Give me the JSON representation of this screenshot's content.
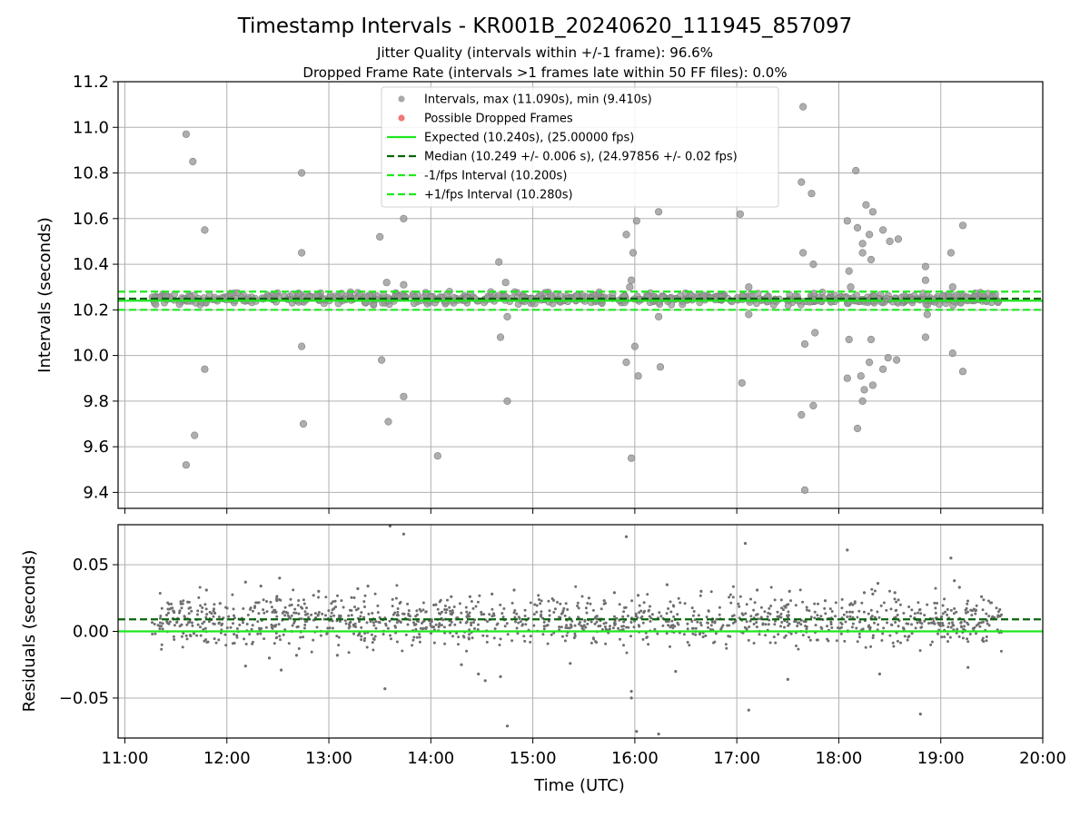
{
  "chart_data": [
    {
      "type": "scatter",
      "title": "Timestamp Intervals - KR001B_20240620_111945_857097",
      "subtitle_1": "Jitter Quality (intervals within +/-1 frame): 96.6%",
      "subtitle_2": "Dropped Frame Rate (intervals >1 frames late within 50 FF files): 0.0%",
      "xlabel": "",
      "ylabel": "Intervals (seconds)",
      "xlim": [
        "10:56",
        "20:00"
      ],
      "ylim": [
        9.33,
        11.2
      ],
      "yticks": [
        "9.4",
        "9.6",
        "9.8",
        "10.0",
        "10.2",
        "10.4",
        "10.6",
        "10.8",
        "11.0",
        "11.2"
      ],
      "grid": true,
      "legend_position": "top-center",
      "legend": [
        "Intervals, max (11.090s), min (9.410s)",
        "Possible Dropped Frames",
        "Expected (10.240s), (25.00000 fps)",
        "Median (10.249 +/- 0.006 s), (24.97856 +/- 0.02 fps)",
        "-1/fps Interval (10.200s)",
        "+1/fps Interval (10.280s)"
      ],
      "lines": {
        "expected": 10.24,
        "median": 10.249,
        "minus_1_fps": 10.2,
        "plus_1_fps": 10.28
      },
      "series": [
        {
          "name": "Intervals, max (11.090s), min (9.410s)",
          "points": [
            [
              "11:36",
              10.97
            ],
            [
              "11:40",
              10.85
            ],
            [
              "11:47",
              10.55
            ],
            [
              "11:47",
              9.94
            ],
            [
              "11:36",
              9.52
            ],
            [
              "11:41",
              9.65
            ],
            [
              "12:44",
              10.8
            ],
            [
              "12:44",
              10.45
            ],
            [
              "12:44",
              10.04
            ],
            [
              "12:45",
              9.7
            ],
            [
              "13:30",
              10.52
            ],
            [
              "13:31",
              9.98
            ],
            [
              "13:34",
              10.32
            ],
            [
              "13:35",
              9.71
            ],
            [
              "13:44",
              10.6
            ],
            [
              "13:44",
              10.31
            ],
            [
              "13:44",
              9.82
            ],
            [
              "14:04",
              9.56
            ],
            [
              "14:40",
              10.41
            ],
            [
              "14:41",
              10.08
            ],
            [
              "14:44",
              10.32
            ],
            [
              "14:45",
              10.17
            ],
            [
              "14:45",
              9.8
            ],
            [
              "15:55",
              10.53
            ],
            [
              "15:57",
              10.3
            ],
            [
              "15:58",
              10.33
            ],
            [
              "15:59",
              10.45
            ],
            [
              "16:00",
              10.04
            ],
            [
              "16:01",
              10.59
            ],
            [
              "16:02",
              9.91
            ],
            [
              "15:55",
              9.97
            ],
            [
              "15:58",
              9.55
            ],
            [
              "16:14",
              10.63
            ],
            [
              "16:14",
              10.17
            ],
            [
              "16:15",
              9.95
            ],
            [
              "17:02",
              10.62
            ],
            [
              "17:03",
              9.88
            ],
            [
              "17:07",
              10.3
            ],
            [
              "17:07",
              10.18
            ],
            [
              "17:39",
              11.09
            ],
            [
              "17:38",
              10.76
            ],
            [
              "17:39",
              10.45
            ],
            [
              "17:40",
              10.05
            ],
            [
              "17:38",
              9.74
            ],
            [
              "17:44",
              10.71
            ],
            [
              "17:45",
              10.4
            ],
            [
              "17:46",
              10.1
            ],
            [
              "17:45",
              9.78
            ],
            [
              "17:40",
              9.41
            ],
            [
              "18:05",
              10.59
            ],
            [
              "18:06",
              10.37
            ],
            [
              "18:07",
              10.3
            ],
            [
              "18:06",
              10.07
            ],
            [
              "18:05",
              9.9
            ],
            [
              "18:10",
              10.81
            ],
            [
              "18:11",
              10.56
            ],
            [
              "18:14",
              10.49
            ],
            [
              "18:14",
              10.45
            ],
            [
              "18:16",
              10.66
            ],
            [
              "18:18",
              10.53
            ],
            [
              "18:20",
              10.63
            ],
            [
              "18:19",
              10.42
            ],
            [
              "18:19",
              10.07
            ],
            [
              "18:18",
              9.97
            ],
            [
              "18:20",
              9.87
            ],
            [
              "18:13",
              9.91
            ],
            [
              "18:14",
              9.8
            ],
            [
              "18:15",
              9.85
            ],
            [
              "18:11",
              9.68
            ],
            [
              "18:26",
              10.55
            ],
            [
              "18:30",
              10.5
            ],
            [
              "18:28",
              10.25
            ],
            [
              "18:29",
              9.99
            ],
            [
              "18:26",
              9.94
            ],
            [
              "18:35",
              10.51
            ],
            [
              "18:34",
              9.98
            ],
            [
              "18:51",
              10.39
            ],
            [
              "18:51",
              10.33
            ],
            [
              "18:52",
              10.18
            ],
            [
              "18:51",
              10.08
            ],
            [
              "19:06",
              10.45
            ],
            [
              "19:07",
              10.3
            ],
            [
              "19:07",
              10.01
            ],
            [
              "19:13",
              10.57
            ],
            [
              "19:13",
              9.93
            ]
          ]
        },
        {
          "name": "Possible Dropped Frames",
          "points": []
        }
      ]
    },
    {
      "type": "scatter",
      "title": "",
      "xlabel": "Time (UTC)",
      "ylabel": "Residuals (seconds)",
      "xlim": [
        "10:56",
        "20:00"
      ],
      "ylim": [
        -0.08,
        0.08
      ],
      "xticks": [
        "11:00",
        "12:00",
        "13:00",
        "14:00",
        "15:00",
        "16:00",
        "17:00",
        "18:00",
        "19:00",
        "20:00"
      ],
      "yticks": [
        "−0.05",
        "0.00",
        "0.05"
      ],
      "grid": true,
      "lines": {
        "zero": 0.0,
        "median_offset": 0.009
      },
      "series": [
        {
          "name": "",
          "points": [
            [
              "11:37",
              0.022
            ],
            [
              "11:48",
              0.031
            ],
            [
              "11:56",
              0.021
            ],
            [
              "12:11",
              -0.026
            ],
            [
              "12:11",
              0.037
            ],
            [
              "12:20",
              0.034
            ],
            [
              "12:25",
              -0.02
            ],
            [
              "12:31",
              0.04
            ],
            [
              "12:32",
              -0.029
            ],
            [
              "12:41",
              -0.018
            ],
            [
              "12:51",
              0.027
            ],
            [
              "12:54",
              0.03
            ],
            [
              "13:05",
              -0.018
            ],
            [
              "13:17",
              0.032
            ],
            [
              "13:23",
              0.034
            ],
            [
              "13:33",
              -0.043
            ],
            [
              "13:36",
              0.079
            ],
            [
              "13:44",
              0.073
            ],
            [
              "14:03",
              0.02
            ],
            [
              "14:12",
              0.026
            ],
            [
              "14:18",
              -0.025
            ],
            [
              "14:23",
              0.026
            ],
            [
              "14:28",
              -0.032
            ],
            [
              "14:32",
              -0.037
            ],
            [
              "14:36",
              0.028
            ],
            [
              "14:41",
              -0.034
            ],
            [
              "14:45",
              -0.071
            ],
            [
              "14:49",
              0.031
            ],
            [
              "15:22",
              -0.024
            ],
            [
              "15:33",
              0.025
            ],
            [
              "15:42",
              0.023
            ],
            [
              "15:48",
              0.029
            ],
            [
              "15:55",
              0.071
            ],
            [
              "15:58",
              -0.045
            ],
            [
              "15:58",
              -0.05
            ],
            [
              "16:01",
              -0.075
            ],
            [
              "16:02",
              0.027
            ],
            [
              "16:14",
              -0.077
            ],
            [
              "16:19",
              0.035
            ],
            [
              "16:24",
              -0.03
            ],
            [
              "16:39",
              0.03
            ],
            [
              "17:05",
              0.066
            ],
            [
              "17:07",
              -0.059
            ],
            [
              "17:12",
              0.031
            ],
            [
              "17:30",
              -0.036
            ],
            [
              "17:31",
              0.03
            ],
            [
              "17:52",
              0.023
            ],
            [
              "18:05",
              0.061
            ],
            [
              "18:15",
              0.029
            ],
            [
              "18:20",
              0.028
            ],
            [
              "18:23",
              0.036
            ],
            [
              "18:24",
              -0.032
            ],
            [
              "18:33",
              0.029
            ],
            [
              "18:48",
              -0.062
            ],
            [
              "19:06",
              0.055
            ],
            [
              "19:08",
              0.038
            ],
            [
              "19:11",
              0.033
            ],
            [
              "19:16",
              -0.027
            ],
            [
              "19:24",
              0.026
            ]
          ]
        }
      ]
    }
  ]
}
